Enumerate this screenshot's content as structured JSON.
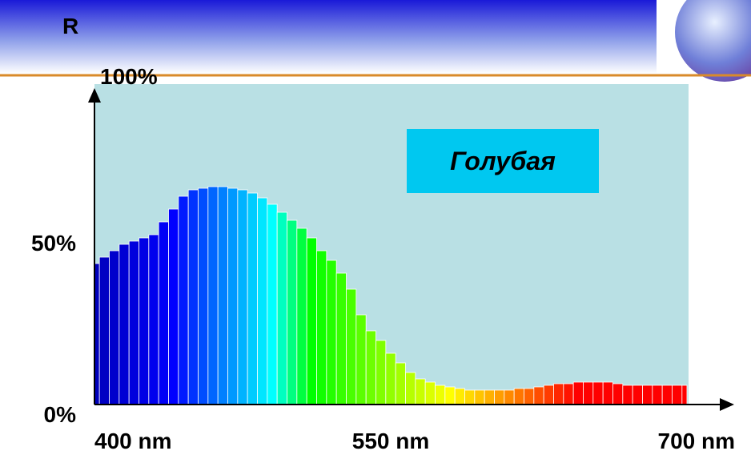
{
  "chart_data": {
    "type": "bar",
    "y_label": "R",
    "annotation": "Голубая",
    "x": [
      400,
      405,
      410,
      415,
      420,
      425,
      430,
      435,
      440,
      445,
      450,
      455,
      460,
      465,
      470,
      475,
      480,
      485,
      490,
      495,
      500,
      505,
      510,
      515,
      520,
      525,
      530,
      535,
      540,
      545,
      550,
      555,
      560,
      565,
      570,
      575,
      580,
      585,
      590,
      595,
      600,
      605,
      610,
      615,
      620,
      625,
      630,
      635,
      640,
      645,
      650,
      655,
      660,
      665,
      670,
      675,
      680,
      685,
      690,
      695,
      700
    ],
    "values": [
      44,
      46,
      48,
      50,
      51,
      52,
      53,
      57,
      61,
      65,
      67,
      67.5,
      68,
      68,
      67.5,
      67,
      66,
      64.5,
      62.5,
      60,
      57.5,
      55,
      52,
      48,
      45,
      41,
      36,
      28,
      23,
      20,
      16,
      13,
      10,
      8,
      7,
      6,
      5.5,
      5,
      4.5,
      4.5,
      4.5,
      4.5,
      4.5,
      5,
      5,
      5.5,
      6,
      6.5,
      6.5,
      7,
      7,
      7,
      7,
      6.5,
      6,
      6,
      6,
      6,
      6,
      6,
      6
    ],
    "xlim": [
      400,
      700
    ],
    "xticks": [
      {
        "value": 400,
        "label": "400 nm"
      },
      {
        "value": 550,
        "label": "550 nm"
      },
      {
        "value": 700,
        "label": "700 nm"
      }
    ],
    "ylim": [
      0,
      100
    ],
    "yticks": [
      {
        "value": 0,
        "label": "0%"
      },
      {
        "value": 50,
        "label": "50%"
      },
      {
        "value": 100,
        "label": "100%"
      }
    ]
  }
}
